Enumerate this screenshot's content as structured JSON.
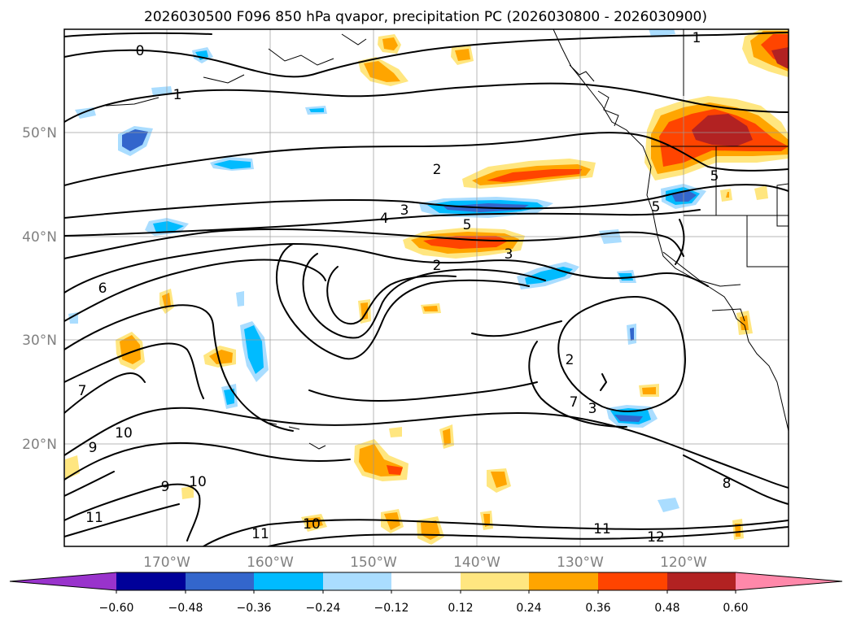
{
  "title": "2026030500 F096 850 hPa qvapor, precipitation PC (2026030800 - 2026030900)",
  "lat_labels": [
    "50°N",
    "40°N",
    "30°N",
    "20°N"
  ],
  "lon_labels": [
    "170°W",
    "160°W",
    "150°W",
    "140°W",
    "130°W",
    "120°W"
  ],
  "contour_labels": [
    "0",
    "1",
    "1",
    "2",
    "2",
    "2",
    "3",
    "3",
    "3",
    "4",
    "5",
    "5",
    "5",
    "6",
    "7",
    "7",
    "8",
    "9",
    "9",
    "10",
    "10",
    "10",
    "11",
    "11",
    "11",
    "12"
  ],
  "colorbar": {
    "ticks": [
      "−0.60",
      "−0.48",
      "−0.36",
      "−0.24",
      "−0.12",
      "0.12",
      "0.24",
      "0.36",
      "0.48",
      "0.60"
    ],
    "colors": [
      "#9933cc",
      "#000099",
      "#3366cc",
      "#00bbff",
      "#aaddff",
      "#ffffff",
      "#ffe680",
      "#ffa500",
      "#ff4400",
      "#b22222",
      "#ff88aa"
    ]
  },
  "colors": {
    "neg_light": "#aaddff",
    "neg_cyan": "#00bbff",
    "neg_blue": "#3366cc",
    "neg_purple": "#9933cc",
    "pos_yellow": "#ffe680",
    "pos_orange": "#ffa500",
    "pos_red": "#ff4400",
    "pos_darkred": "#b22222"
  }
}
